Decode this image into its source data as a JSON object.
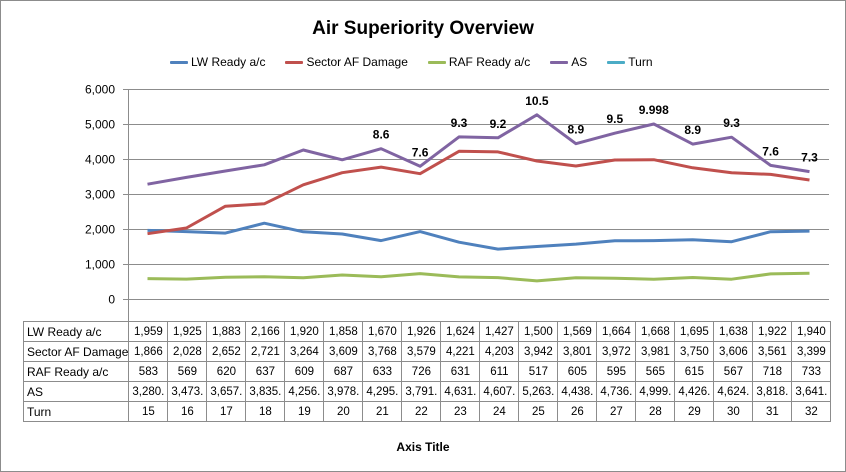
{
  "chart_data": {
    "type": "line",
    "title": "Air Superiority Overview",
    "xlabel": "Axis Title",
    "ylabel": "",
    "ylim": [
      0,
      6000
    ],
    "yticks": [
      0,
      1000,
      2000,
      3000,
      4000,
      5000,
      6000
    ],
    "ytick_labels": [
      "0",
      "1,000",
      "2,000",
      "3,000",
      "4,000",
      "5,000",
      "6,000"
    ],
    "grid": true,
    "legend_position": "top",
    "categories": [
      "15",
      "16",
      "17",
      "18",
      "19",
      "20",
      "21",
      "22",
      "23",
      "24",
      "25",
      "26",
      "27",
      "28",
      "29",
      "30",
      "31",
      "32"
    ],
    "series": [
      {
        "name": "LW Ready a/c",
        "color": "#4F81BD",
        "values": [
          1959,
          1925,
          1883,
          2166,
          1920,
          1858,
          1670,
          1926,
          1624,
          1427,
          1500,
          1569,
          1664,
          1668,
          1695,
          1638,
          1922,
          1940
        ],
        "table_values": [
          "1,959",
          "1,925",
          "1,883",
          "2,166",
          "1,920",
          "1,858",
          "1,670",
          "1,926",
          "1,624",
          "1,427",
          "1,500",
          "1,569",
          "1,664",
          "1,668",
          "1,695",
          "1,638",
          "1,922",
          "1,940"
        ]
      },
      {
        "name": "Sector AF Damage",
        "color": "#C0504D",
        "values": [
          1866,
          2028,
          2652,
          2721,
          3264,
          3609,
          3768,
          3579,
          4221,
          4203,
          3942,
          3801,
          3972,
          3981,
          3750,
          3606,
          3561,
          3399
        ],
        "table_values": [
          "1,866",
          "2,028",
          "2,652",
          "2,721",
          "3,264",
          "3,609",
          "3,768",
          "3,579",
          "4,221",
          "4,203",
          "3,942",
          "3,801",
          "3,972",
          "3,981",
          "3,750",
          "3,606",
          "3,561",
          "3,399"
        ]
      },
      {
        "name": "RAF Ready a/c",
        "color": "#9BBB59",
        "values": [
          583,
          569,
          620,
          637,
          609,
          687,
          633,
          726,
          631,
          611,
          517,
          605,
          595,
          565,
          615,
          567,
          718,
          733
        ],
        "table_values": [
          "583",
          "569",
          "620",
          "637",
          "609",
          "687",
          "633",
          "726",
          "631",
          "611",
          "517",
          "605",
          "595",
          "565",
          "615",
          "567",
          "718",
          "733"
        ]
      },
      {
        "name": "AS",
        "color": "#8064A2",
        "values": [
          3280,
          3473,
          3657,
          3835,
          4256,
          3978,
          4295,
          3791,
          4631,
          4607,
          5263,
          4438,
          4736,
          4999,
          4426,
          4624,
          3818,
          3641
        ],
        "table_values": [
          "3,280.",
          "3,473.",
          "3,657.",
          "3,835.",
          "4,256.",
          "3,978.",
          "4,295.",
          "3,791.",
          "4,631.",
          "4,607.",
          "5,263.",
          "4,438.",
          "4,736.",
          "4,999.",
          "4,426.",
          "4,624.",
          "3,818.",
          "3,641."
        ],
        "data_labels": [
          "",
          "",
          "",
          "",
          "",
          "",
          "8.6",
          "7.6",
          "9.3",
          "9.2",
          "10.5",
          "8.9",
          "9.5",
          "9.998",
          "8.9",
          "9.3",
          "7.6",
          "7.3"
        ]
      },
      {
        "name": "Turn",
        "color": "#4BACC6",
        "values": [
          15,
          16,
          17,
          18,
          19,
          20,
          21,
          22,
          23,
          24,
          25,
          26,
          27,
          28,
          29,
          30,
          31,
          32
        ],
        "table_values": [
          "15",
          "16",
          "17",
          "18",
          "19",
          "20",
          "21",
          "22",
          "23",
          "24",
          "25",
          "26",
          "27",
          "28",
          "29",
          "30",
          "31",
          "32"
        ]
      }
    ]
  }
}
